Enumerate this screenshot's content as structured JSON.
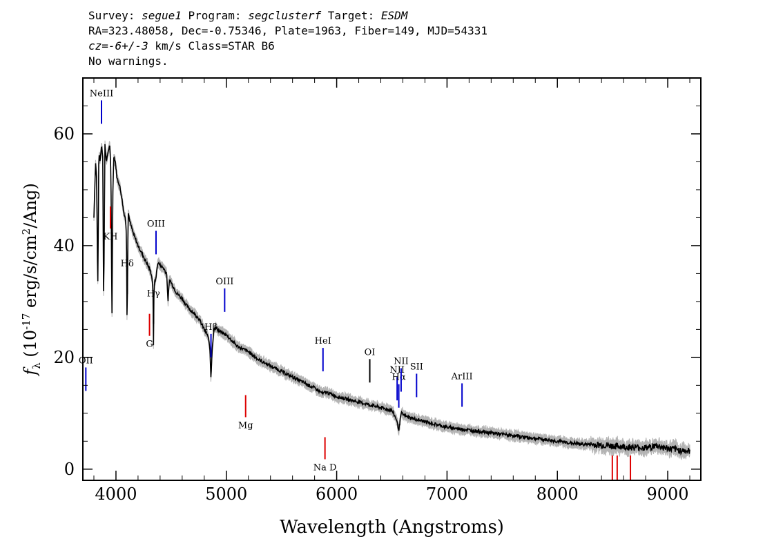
{
  "header": {
    "line1": {
      "a": "Survey: ",
      "b": "segue1",
      "c": " Program: ",
      "d": "segclusterf",
      "e": " Target: ",
      "f": "ESDM"
    },
    "line2": "RA=323.48058, Dec=-0.75346, Plate=1963, Fiber=149, MJD=54331",
    "line3": {
      "a": "cz=-6+/-3",
      "b": " km/s Class=STAR B6"
    },
    "line4": "No warnings."
  },
  "colors": {
    "flux": "#000000",
    "error": "#b4b4b4",
    "emission": "#0000cc",
    "absorption": "#dd0000",
    "sky": "#000000"
  },
  "chart_data": {
    "type": "line",
    "xlabel": "Wavelength (Angstroms)",
    "ylabel": "f_λ (10^-17 erg/s/cm^2/Ang)",
    "xlim": [
      3700,
      9300
    ],
    "ylim": [
      -2,
      70
    ],
    "xticks": [
      4000,
      5000,
      6000,
      7000,
      8000,
      9000
    ],
    "yticks": [
      0,
      20,
      40,
      60
    ],
    "series": [
      {
        "x": [
          3800,
          3815,
          3825,
          3835,
          3845,
          3855,
          3870,
          3880,
          3889,
          3900,
          3915,
          3930,
          3945,
          3955,
          3960,
          3965,
          3970,
          3980,
          3995,
          4010,
          4030,
          4050,
          4070,
          4085,
          4095,
          4101,
          4110,
          4130,
          4160,
          4200,
          4250,
          4300,
          4320,
          4335,
          4340,
          4345,
          4360,
          4380,
          4400,
          4430,
          4460,
          4471,
          4485,
          4510,
          4550,
          4600,
          4650,
          4700,
          4750,
          4800,
          4830,
          4850,
          4861,
          4870,
          4890,
          4920,
          4950,
          5000,
          5100,
          5200,
          5300,
          5400,
          5500,
          5600,
          5700,
          5800,
          5876,
          5900,
          6000,
          6100,
          6200,
          6300,
          6400,
          6500,
          6540,
          6563,
          6585,
          6620,
          6700,
          6800,
          7000,
          7200,
          7400,
          7600,
          7800,
          8000,
          8200,
          8400,
          8600,
          8800,
          8900,
          9000,
          9100,
          9200
        ],
        "y": [
          45,
          55,
          52,
          31,
          57,
          55,
          58,
          56,
          29,
          58,
          55,
          57,
          58,
          52,
          36,
          26,
          48,
          56,
          55,
          52,
          51,
          49,
          46,
          45,
          42,
          25,
          46,
          44,
          42,
          40,
          38,
          36,
          35,
          33,
          22,
          33,
          34,
          37,
          36.5,
          36,
          35,
          30,
          34,
          33,
          31.5,
          30.5,
          29,
          28,
          27,
          25,
          24,
          22,
          16,
          21,
          25.5,
          25,
          24.5,
          24,
          22,
          21,
          19.5,
          18.5,
          17.5,
          16.5,
          15.5,
          14.5,
          13.5,
          13.8,
          13,
          12.5,
          12,
          11.5,
          11,
          10.5,
          9,
          7,
          10,
          9.5,
          9,
          8.5,
          7.5,
          7,
          6.5,
          6,
          5.5,
          5,
          4.5,
          4.3,
          4,
          3.8,
          4.2,
          3.7,
          3.4,
          3.2
        ]
      }
    ],
    "lines": [
      {
        "label": "OII",
        "wave": 3727,
        "kind": "emission"
      },
      {
        "label": "NeIII",
        "wave": 3869,
        "kind": "emission"
      },
      {
        "label": "Hδ",
        "wave": 4102,
        "kind": "sky"
      },
      {
        "label": "Hγ",
        "wave": 4340,
        "kind": "sky"
      },
      {
        "label": "OIII",
        "wave": 4363,
        "kind": "emission"
      },
      {
        "label": "Hβ",
        "wave": 4861,
        "kind": "emission"
      },
      {
        "label": "OIII",
        "wave": 4985,
        "kind": "emission"
      },
      {
        "label": "HeI",
        "wave": 5876,
        "kind": "emission"
      },
      {
        "label": "OI",
        "wave": 6300,
        "kind": "sky"
      },
      {
        "label": "NII",
        "wave": 6548,
        "kind": "emission"
      },
      {
        "label": "Hα",
        "wave": 6563,
        "kind": "emission"
      },
      {
        "label": "NII",
        "wave": 6584,
        "kind": "emission"
      },
      {
        "label": "SII",
        "wave": 6724,
        "kind": "emission"
      },
      {
        "label": "ArIII",
        "wave": 7136,
        "kind": "emission"
      },
      {
        "label": "KH",
        "wave": 3950,
        "kind": "absorption"
      },
      {
        "label": "G",
        "wave": 4304,
        "kind": "absorption"
      },
      {
        "label": "Mg",
        "wave": 5175,
        "kind": "absorption"
      },
      {
        "label": "Na D",
        "wave": 5894,
        "kind": "absorption"
      },
      {
        "label": "",
        "wave": 8498,
        "kind": "absorption"
      },
      {
        "label": "",
        "wave": 8542,
        "kind": "absorption"
      },
      {
        "label": "",
        "wave": 8662,
        "kind": "absorption"
      }
    ]
  }
}
